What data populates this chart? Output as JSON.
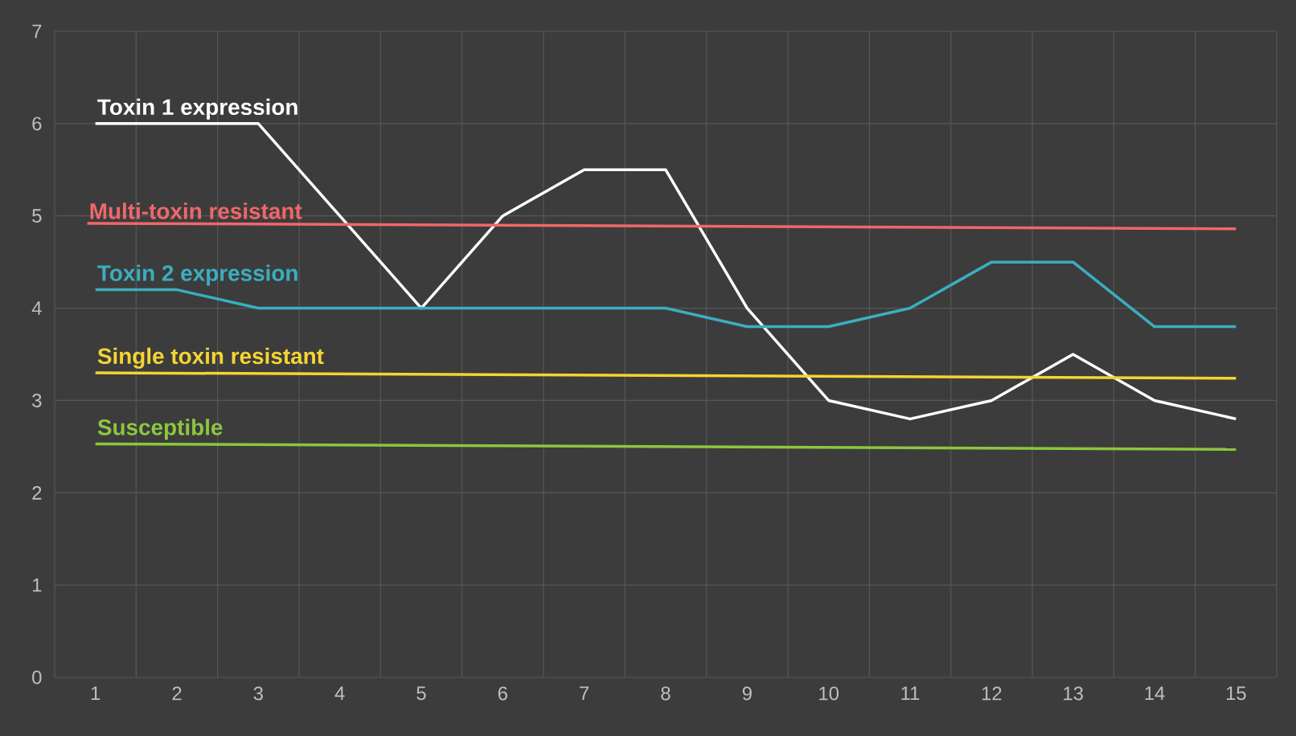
{
  "chart_data": {
    "type": "line",
    "x": [
      1,
      2,
      3,
      4,
      5,
      6,
      7,
      8,
      9,
      10,
      11,
      12,
      13,
      14,
      15
    ],
    "series": [
      {
        "name": "Toxin 1 expression",
        "color": "#ffffff",
        "values": [
          6,
          6,
          6,
          5,
          4,
          5,
          5.5,
          5.5,
          4,
          3,
          2.8,
          3,
          3.5,
          3,
          2.8
        ]
      },
      {
        "name": "Multi-toxin resistant",
        "color": "#f0676a",
        "x": [
          0.9,
          15
        ],
        "values": [
          4.92,
          4.86
        ]
      },
      {
        "name": "Toxin 2 expression",
        "color": "#3aaec0",
        "values": [
          4.2,
          4.2,
          4,
          4,
          4,
          4,
          4,
          4,
          3.8,
          3.8,
          4,
          4.5,
          4.5,
          3.8,
          3.8
        ]
      },
      {
        "name": "Single toxin resistant",
        "color": "#f5d432",
        "values": [
          3.3,
          3.24
        ],
        "x": [
          1,
          15
        ]
      },
      {
        "name": "Susceptible",
        "color": "#8cc63f",
        "values": [
          2.53,
          2.47
        ],
        "x": [
          1,
          15
        ]
      }
    ],
    "xlim": [
      0.5,
      15.5
    ],
    "xticks": [
      1,
      2,
      3,
      4,
      5,
      6,
      7,
      8,
      9,
      10,
      11,
      12,
      13,
      14,
      15,
      {
        "value": 0.5,
        "label": null
      },
      {
        "value": 1.5,
        "label": null
      },
      {
        "value": 2.5,
        "label": null
      },
      {
        "value": 3.5,
        "label": null
      },
      {
        "value": 4.5,
        "label": null
      },
      {
        "value": 5.5,
        "label": null
      },
      {
        "value": 6.5,
        "label": null
      },
      {
        "value": 7.5,
        "label": null
      },
      {
        "value": 8.5,
        "label": null
      },
      {
        "value": 9.5,
        "label": null
      },
      {
        "value": 10.5,
        "label": null
      },
      {
        "value": 11.5,
        "label": null
      },
      {
        "value": 12.5,
        "label": null
      },
      {
        "value": 13.5,
        "label": null
      },
      {
        "value": 14.5,
        "label": null
      },
      {
        "value": 15.5,
        "label": null
      }
    ],
    "ylim": [
      0,
      7
    ],
    "yticks": [
      0,
      1,
      2,
      3,
      4,
      5,
      6,
      7
    ],
    "grid": true,
    "marker": "none",
    "line_style": "solid"
  }
}
